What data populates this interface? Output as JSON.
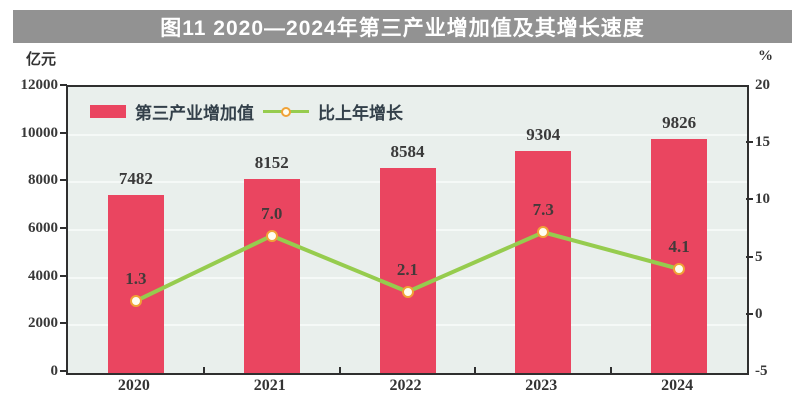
{
  "banner": {
    "title": "图11 2020—2024年第三产业增加值及其增长速度",
    "background": "#929292",
    "text_color": "#ffffff"
  },
  "legend": {
    "bar_label": "第三产业增加值",
    "line_label": "比上年增长"
  },
  "chart_data": {
    "type": "bar",
    "subtype": "bar+line combo",
    "title": "图11 2020—2024年第三产业增加值及其增长速度",
    "categories": [
      "2020",
      "2021",
      "2022",
      "2023",
      "2024"
    ],
    "series": [
      {
        "name": "第三产业增加值",
        "type": "bar",
        "axis": "left",
        "values": [
          7482,
          8152,
          8584,
          9304,
          9826
        ],
        "value_labels": [
          "7482",
          "8152",
          "8584",
          "9304",
          "9826"
        ],
        "color": "#ea4560"
      },
      {
        "name": "比上年增长",
        "type": "line",
        "axis": "right",
        "values": [
          1.3,
          7.0,
          2.1,
          7.3,
          4.1
        ],
        "value_labels": [
          "1.3",
          "7.0",
          "2.1",
          "7.3",
          "4.1"
        ],
        "color": "#96cc4e",
        "marker_ring_color": "#f0a237",
        "marker_fill_color": "#fffdf0"
      }
    ],
    "left_axis": {
      "unit": "亿元",
      "min": 0,
      "max": 12000,
      "ticks": [
        "12000",
        "10000",
        "8000",
        "6000",
        "4000",
        "2000",
        "0"
      ]
    },
    "right_axis": {
      "unit": "%",
      "min": -5,
      "max": 20,
      "ticks": [
        "20",
        "15",
        "10",
        "5",
        "0",
        "-5"
      ]
    },
    "grid": true,
    "gridline_color": "#f5f9f7",
    "plot_background": "#e9efec",
    "axis_color": "#2f2f2f",
    "legend_position": "top-left inside plot"
  }
}
